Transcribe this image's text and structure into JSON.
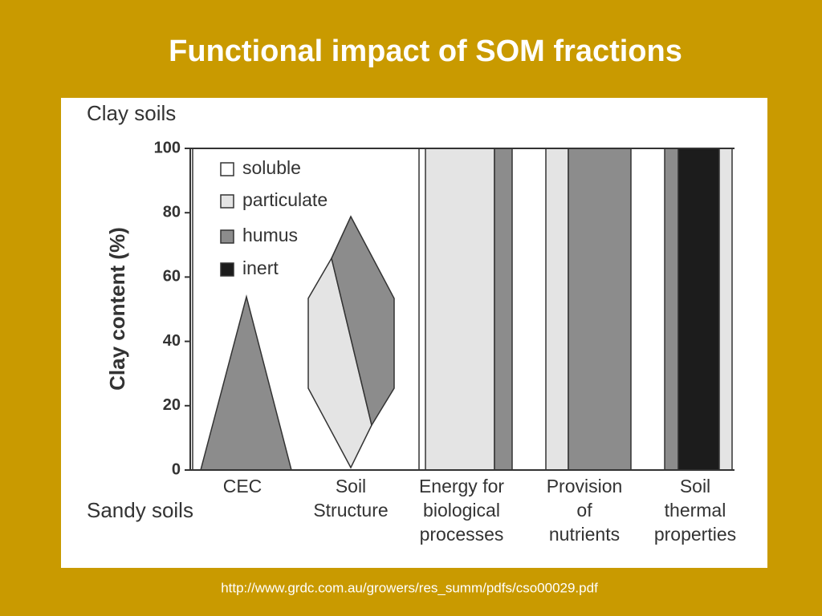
{
  "slide": {
    "title": "Functional impact of SOM fractions",
    "source": "http://www.grdc.com.au/growers/res_summ/pdfs/cso00029.pdf"
  },
  "chart_data": {
    "type": "band",
    "top_label": "Clay soils",
    "bottom_label": "Sandy soils",
    "ylabel": "Clay content (%)",
    "ylim": [
      0,
      100
    ],
    "yticks": [
      0,
      20,
      40,
      60,
      80,
      100
    ],
    "categories": [
      [
        "CEC"
      ],
      [
        "Soil",
        "Structure"
      ],
      [
        "Energy for",
        "biological",
        "processes"
      ],
      [
        "Provision",
        "of",
        "nutrients"
      ],
      [
        "Soil",
        "thermal",
        "properties"
      ]
    ],
    "series": [
      {
        "name": "soluble",
        "color": "#ffffff"
      },
      {
        "name": "particulate",
        "color": "#e4e4e4"
      },
      {
        "name": "humus",
        "color": "#8c8c8c"
      },
      {
        "name": "inert",
        "color": "#1c1c1c"
      }
    ]
  }
}
